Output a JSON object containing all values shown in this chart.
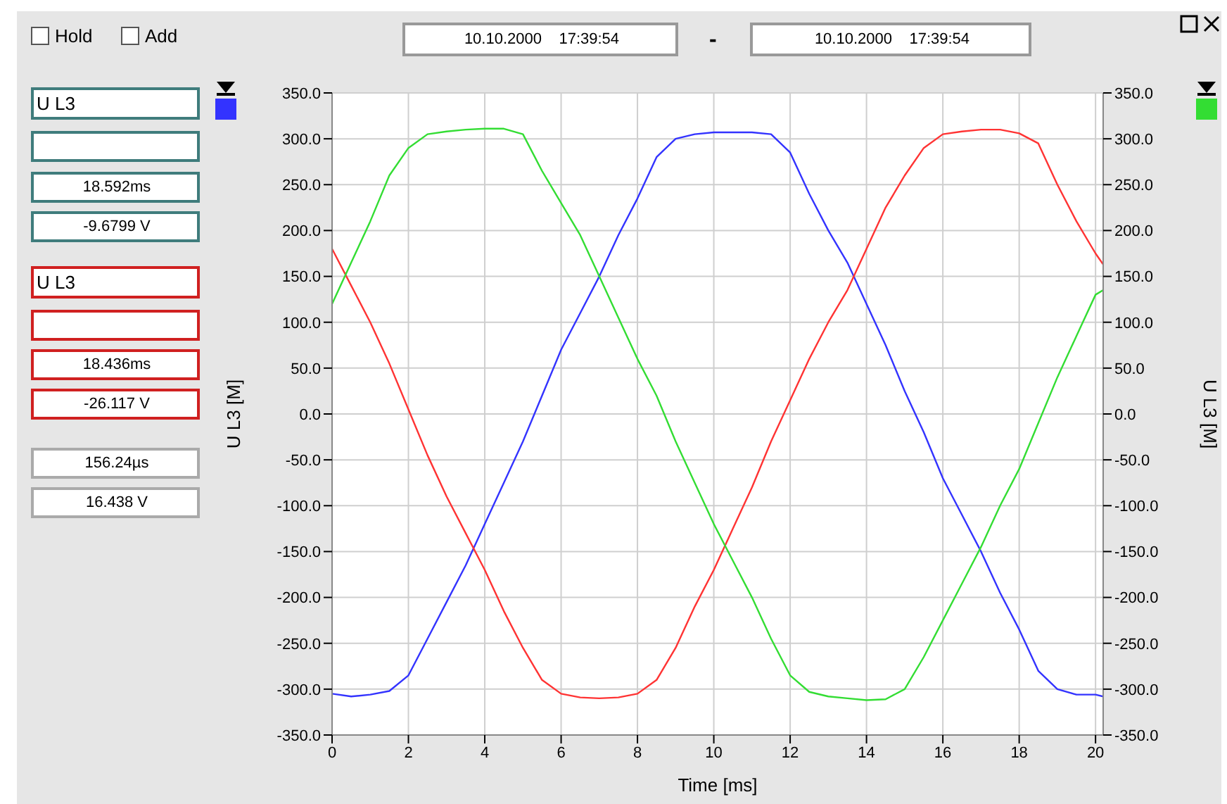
{
  "chart_data": {
    "type": "line",
    "xlabel": "Time [ms]",
    "ylabel": "U L3 [M]",
    "y2label": "U L3 [M]",
    "annotations": [
      "Hold",
      "Add",
      "10.10.2000    17:39:54",
      "-",
      "10.10.2000    17:39:54",
      "U L3",
      "18.592ms",
      "-9.6799 V",
      "U L3",
      "18.436ms",
      "-26.117 V",
      "156.24µs",
      "16.438 V"
    ],
    "x": [
      0,
      0.5,
      1,
      1.5,
      2,
      2.5,
      3,
      3.5,
      4,
      4.5,
      5,
      5.5,
      6,
      6.5,
      7,
      7.5,
      8,
      8.5,
      9,
      9.5,
      10,
      10.5,
      11,
      11.5,
      12,
      12.5,
      13,
      13.5,
      14,
      14.5,
      15,
      15.5,
      16,
      16.5,
      17,
      17.5,
      18,
      18.5,
      19,
      19.5,
      20,
      20.2
    ],
    "series": [
      {
        "color": "#3333ff",
        "values": [
          -305,
          -308,
          -306,
          -302,
          -285,
          -245,
          -205,
          -165,
          -120,
          -75,
          -30,
          20,
          70,
          110,
          150,
          195,
          235,
          280,
          300,
          305,
          307,
          307,
          307,
          305,
          285,
          240,
          200,
          165,
          120,
          75,
          25,
          -20,
          -70,
          -110,
          -150,
          -195,
          -235,
          -280,
          -300,
          -306,
          -306,
          -308
        ]
      },
      {
        "color": "#ff3333",
        "values": [
          180,
          140,
          100,
          55,
          5,
          -45,
          -90,
          -130,
          -170,
          -215,
          -255,
          -290,
          -305,
          -309,
          -310,
          -309,
          -305,
          -290,
          -255,
          -210,
          -170,
          -125,
          -80,
          -30,
          15,
          60,
          100,
          135,
          180,
          225,
          260,
          290,
          305,
          308,
          310,
          310,
          306,
          295,
          250,
          210,
          175,
          163
        ]
      },
      {
        "color": "#33dd33",
        "axis": "y2",
        "values": [
          120,
          165,
          210,
          260,
          290,
          305,
          308,
          310,
          311,
          311,
          305,
          265,
          230,
          195,
          150,
          105,
          60,
          20,
          -30,
          -75,
          -120,
          -160,
          -200,
          -245,
          -285,
          -303,
          -308,
          -310,
          -312,
          -311,
          -300,
          -265,
          -225,
          -185,
          -145,
          -100,
          -60,
          -10,
          40,
          85,
          130,
          135
        ]
      }
    ],
    "xlim": [
      0,
      20.2
    ],
    "xticks": [
      0,
      2,
      4,
      6,
      8,
      10,
      12,
      14,
      16,
      18,
      20
    ],
    "ylim": [
      -350,
      350
    ],
    "yticks": [
      {
        "value": -350,
        "label": "-350.0"
      },
      {
        "value": -300,
        "label": "-300.0"
      },
      {
        "value": -250,
        "label": "-250.0"
      },
      {
        "value": -200,
        "label": "-200.0"
      },
      {
        "value": -150,
        "label": "-150.0"
      },
      {
        "value": -100,
        "label": "-100.0"
      },
      {
        "value": -50,
        "label": "-50.0"
      },
      {
        "value": 0,
        "label": "0.0"
      },
      {
        "value": 50,
        "label": "50.0"
      },
      {
        "value": 100,
        "label": "100.0"
      },
      {
        "value": 150,
        "label": "150.0"
      },
      {
        "value": 200,
        "label": "200.0"
      },
      {
        "value": 250,
        "label": "250.0"
      },
      {
        "value": 300,
        "label": "300.0"
      },
      {
        "value": 350,
        "label": "350.0"
      }
    ],
    "y2lim": [
      -350,
      350
    ],
    "y2ticks": [
      {
        "value": -350,
        "label": "-350.0"
      },
      {
        "value": -300,
        "label": "-300.0"
      },
      {
        "value": -250,
        "label": "-250.0"
      },
      {
        "value": -200,
        "label": "-200.0"
      },
      {
        "value": -150,
        "label": "-150.0"
      },
      {
        "value": -100,
        "label": "-100.0"
      },
      {
        "value": -50,
        "label": "-50.0"
      },
      {
        "value": 0,
        "label": "0.0"
      },
      {
        "value": 50,
        "label": "50.0"
      },
      {
        "value": 100,
        "label": "100.0"
      },
      {
        "value": 150,
        "label": "150.0"
      },
      {
        "value": 200,
        "label": "200.0"
      },
      {
        "value": 250,
        "label": "250.0"
      },
      {
        "value": 300,
        "label": "300.0"
      },
      {
        "value": 350,
        "label": "350.0"
      }
    ],
    "grid": true,
    "marker": "none",
    "line_style": "solid"
  }
}
